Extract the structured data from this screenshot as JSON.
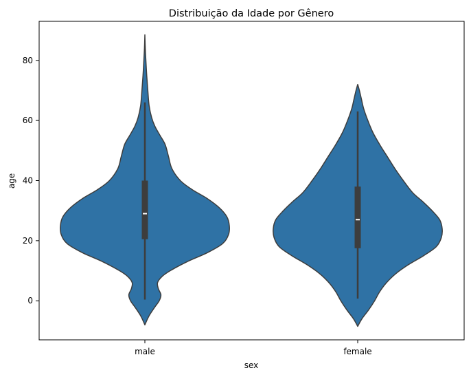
{
  "chart_data": {
    "type": "violin",
    "title": "Distribuição da Idade por Gênero",
    "xlabel": "sex",
    "ylabel": "age",
    "categories": [
      "male",
      "female"
    ],
    "ylim": [
      -13,
      93
    ],
    "yticks": [
      "0",
      "20",
      "40",
      "60",
      "80"
    ],
    "grid": false,
    "series": [
      {
        "category": "male",
        "kde_min": -8,
        "kde_max": 88.5,
        "q1": 20.5,
        "median": 29,
        "q3": 40,
        "whisker_low": 0.4,
        "whisker_high": 66
      },
      {
        "category": "female",
        "kde_min": -8.5,
        "kde_max": 72,
        "q1": 17.5,
        "median": 27,
        "q3": 38,
        "whisker_low": 0.75,
        "whisker_high": 63
      }
    ],
    "colors": {
      "violin_fill": "#2f72a5",
      "violin_edge": "#3d3d3d",
      "box": "#3d3d3d",
      "median": "#ffffff"
    }
  }
}
